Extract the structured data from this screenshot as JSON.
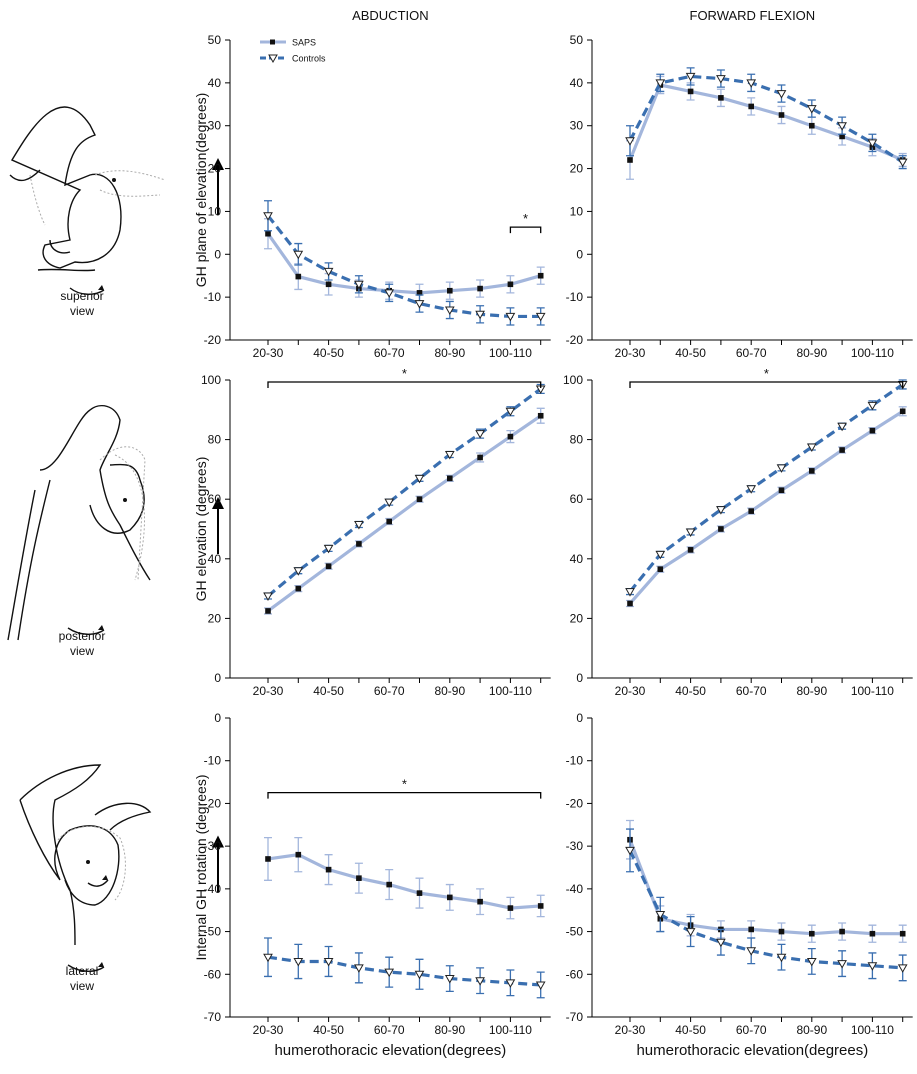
{
  "illustrations": [
    [
      "superior",
      "view"
    ],
    [
      "posterior",
      "view"
    ],
    [
      "lateral",
      "view"
    ]
  ],
  "chart_data": [
    {
      "type": "line",
      "title": "ABDUCTION",
      "ylabel": "GH plane of elevation(degrees)",
      "categories": [
        "20-30",
        null,
        "40-50",
        null,
        "60-70",
        null,
        "80-90",
        null,
        "100-110",
        null
      ],
      "ylim": [
        -20,
        50
      ],
      "yticks": [
        -20,
        -10,
        0,
        10,
        20,
        30,
        40,
        50
      ],
      "legend": "upper left",
      "annotations": [
        {
          "text": "*",
          "start": 8,
          "end": 9
        }
      ],
      "series": [
        {
          "name": "SAPS",
          "color": "#a3b6dc",
          "marker": "square",
          "dashed": false,
          "values": [
            4.8,
            -5.2,
            -7,
            -8,
            -8.5,
            -9,
            -8.5,
            -8,
            -7,
            -5
          ],
          "errors": [
            3.5,
            3,
            2.5,
            2,
            2,
            2,
            2,
            2,
            2,
            2
          ]
        },
        {
          "name": "Controls",
          "color": "#3a6fb0",
          "marker": "triangle",
          "dashed": true,
          "values": [
            9,
            0,
            -4,
            -7,
            -9,
            -11.5,
            -13,
            -14,
            -14.5,
            -14.5
          ],
          "errors": [
            3.5,
            2.5,
            2,
            2,
            2,
            2,
            2,
            2,
            2,
            2
          ]
        }
      ]
    },
    {
      "type": "line",
      "title": "FORWARD FLEXION",
      "categories": [
        "20-30",
        null,
        "40-50",
        null,
        "60-70",
        null,
        "80-90",
        null,
        "100-110",
        null
      ],
      "ylim": [
        -20,
        50
      ],
      "yticks": [
        -20,
        -10,
        0,
        10,
        20,
        30,
        40,
        50
      ],
      "series": [
        {
          "color": "#a3b6dc",
          "marker": "square",
          "dashed": false,
          "values": [
            22,
            39.5,
            38,
            36.5,
            34.5,
            32.5,
            30,
            27.5,
            25,
            22
          ],
          "errors": [
            4.5,
            2,
            2,
            2,
            2,
            2,
            2,
            2,
            2,
            1.5
          ]
        },
        {
          "color": "#3a6fb0",
          "marker": "triangle",
          "dashed": true,
          "values": [
            26.5,
            40,
            41.5,
            41,
            40,
            37.5,
            34,
            30,
            26,
            21.5
          ],
          "errors": [
            3.5,
            2,
            2,
            2,
            2,
            2,
            2,
            2,
            2,
            1.5
          ]
        }
      ]
    },
    {
      "type": "line",
      "ylabel": "GH elevation (degrees)",
      "categories": [
        "20-30",
        null,
        "40-50",
        null,
        "60-70",
        null,
        "80-90",
        null,
        "100-110",
        null
      ],
      "ylim": [
        0,
        100
      ],
      "yticks": [
        0,
        20,
        40,
        60,
        80,
        100
      ],
      "annotations": [
        {
          "text": "*",
          "start": 0,
          "end": 9
        }
      ],
      "series": [
        {
          "color": "#a3b6dc",
          "marker": "square",
          "dashed": false,
          "values": [
            22.5,
            30,
            37.5,
            45,
            52.5,
            60,
            67,
            74,
            81,
            88
          ],
          "errors": [
            1,
            1,
            1,
            1,
            1,
            1,
            1,
            1.5,
            2,
            2.5
          ]
        },
        {
          "color": "#3a6fb0",
          "marker": "triangle",
          "dashed": true,
          "values": [
            27.5,
            36,
            43.5,
            51.5,
            59,
            67,
            75,
            82,
            89.5,
            97
          ],
          "errors": [
            1,
            1,
            1,
            1,
            1,
            1,
            1,
            1.5,
            1.5,
            1.5
          ]
        }
      ]
    },
    {
      "type": "line",
      "categories": [
        "20-30",
        null,
        "40-50",
        null,
        "60-70",
        null,
        "80-90",
        null,
        "100-110",
        null
      ],
      "ylim": [
        0,
        100
      ],
      "yticks": [
        0,
        20,
        40,
        60,
        80,
        100
      ],
      "annotations": [
        {
          "text": "*",
          "start": 0,
          "end": 9
        }
      ],
      "series": [
        {
          "color": "#a3b6dc",
          "marker": "square",
          "dashed": false,
          "values": [
            25,
            36.5,
            43,
            50,
            56,
            63,
            69.5,
            76.5,
            83,
            89.5
          ],
          "errors": [
            1,
            1,
            1,
            1,
            1,
            1,
            1,
            1,
            1,
            1.5
          ]
        },
        {
          "color": "#3a6fb0",
          "marker": "triangle",
          "dashed": true,
          "values": [
            29,
            41.5,
            49,
            56.5,
            63.5,
            70.5,
            77.5,
            84.5,
            91.5,
            98.5
          ],
          "errors": [
            1,
            1,
            1,
            1,
            1,
            1,
            1,
            1,
            1.5,
            1.5
          ]
        }
      ]
    },
    {
      "type": "line",
      "ylabel": "Internal GH rotation (degrees)",
      "xlabel": "humerothoracic elevation(degrees)",
      "categories": [
        "20-30",
        null,
        "40-50",
        null,
        "60-70",
        null,
        "80-90",
        null,
        "100-110",
        null
      ],
      "ylim": [
        -70,
        0
      ],
      "yticks": [
        -70,
        -60,
        -50,
        -40,
        -30,
        -20,
        -10,
        0
      ],
      "annotations": [
        {
          "text": "*",
          "start": 0,
          "end": 9
        }
      ],
      "series": [
        {
          "color": "#a3b6dc",
          "marker": "square",
          "dashed": false,
          "values": [
            -33,
            -32,
            -35.5,
            -37.5,
            -39,
            -41,
            -42,
            -43,
            -44.5,
            -44
          ],
          "errors": [
            5,
            4,
            3.5,
            3.5,
            3.5,
            3.5,
            3,
            3,
            2.5,
            2.5
          ]
        },
        {
          "color": "#3a6fb0",
          "marker": "triangle",
          "dashed": true,
          "values": [
            -56,
            -57,
            -57,
            -58.5,
            -59.5,
            -60,
            -61,
            -61.5,
            -62,
            -62.5
          ],
          "errors": [
            4.5,
            4,
            3.5,
            3.5,
            3.5,
            3.5,
            3,
            3,
            3,
            3
          ]
        }
      ]
    },
    {
      "type": "line",
      "xlabel": "humerothoracic elevation(degrees)",
      "categories": [
        "20-30",
        null,
        "40-50",
        null,
        "60-70",
        null,
        "80-90",
        null,
        "100-110",
        null
      ],
      "ylim": [
        -70,
        0
      ],
      "yticks": [
        -70,
        -60,
        -50,
        -40,
        -30,
        -20,
        -10,
        0
      ],
      "series": [
        {
          "color": "#a3b6dc",
          "marker": "square",
          "dashed": false,
          "values": [
            -28.5,
            -47,
            -48.5,
            -49.5,
            -49.5,
            -50,
            -50.5,
            -50,
            -50.5,
            -50.5
          ],
          "errors": [
            4.5,
            3,
            2.5,
            2,
            2,
            2,
            2,
            2,
            2,
            2
          ]
        },
        {
          "color": "#3a6fb0",
          "marker": "triangle",
          "dashed": true,
          "values": [
            -31,
            -46,
            -50,
            -52.5,
            -54.5,
            -56,
            -57,
            -57.5,
            -58,
            -58.5
          ],
          "errors": [
            5,
            4,
            3.5,
            3,
            3,
            3,
            3,
            3,
            3,
            3
          ]
        }
      ]
    }
  ]
}
